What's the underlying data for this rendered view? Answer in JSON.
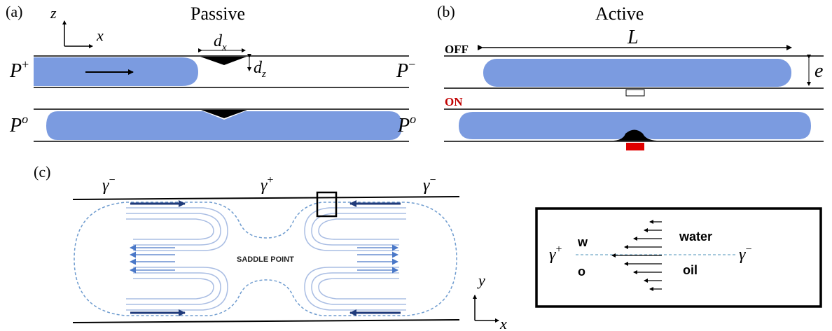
{
  "panel_a": {
    "label": "(a)",
    "title": "Passive",
    "axis_z": "z",
    "axis_x": "x",
    "dx_base": "d",
    "dx_sub": "x",
    "dz_base": "d",
    "dz_sub": "z",
    "p_left_top_base": "P",
    "p_left_top_sup": "+",
    "p_right_top_base": "P",
    "p_right_top_sup": "−",
    "p_left_bottom_base": "P",
    "p_left_bottom_sup": "o",
    "p_right_bottom_base": "P",
    "p_right_bottom_sup": "o"
  },
  "panel_b": {
    "label": "(b)",
    "title": "Active",
    "off_label": "OFF",
    "on_label": "ON",
    "length_label": "L",
    "height_label": "e"
  },
  "panel_c": {
    "label": "(c)",
    "gamma_base": "γ",
    "gamma_minus": "−",
    "gamma_plus": "+",
    "saddle_label": "SADDLE POINT",
    "axis_y": "y",
    "axis_x": "x"
  },
  "inset": {
    "w_label": "w",
    "o_label": "o",
    "water_label": "water",
    "oil_label": "oil",
    "gamma_base": "γ",
    "gamma_plus": "+",
    "gamma_minus": "−"
  },
  "colors": {
    "droplet": "#7b9be0",
    "arrow_navy": "#1f3a7a",
    "heater_red": "#e00000",
    "on_red": "#c00000",
    "flow_line": "#a9bde3",
    "dashed_outline": "#6f9ccf",
    "marker_blue": "#4a78c8"
  }
}
